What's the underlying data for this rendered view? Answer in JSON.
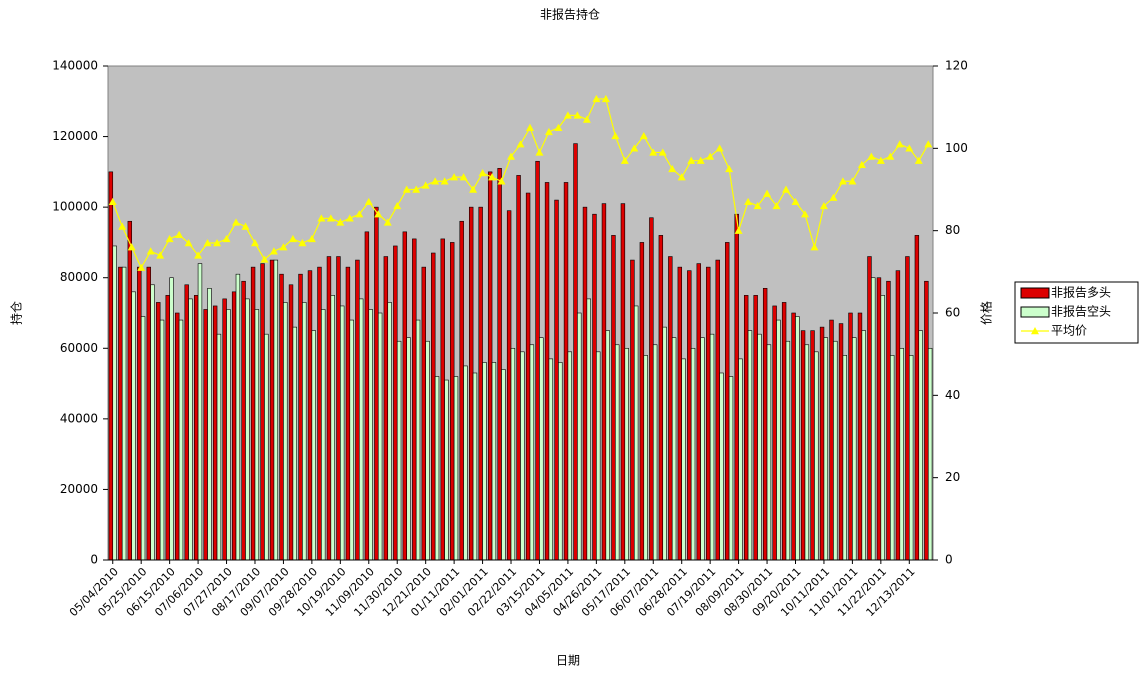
{
  "chart_data": {
    "type": "bar-line",
    "title": "非报告持仓",
    "xlabel": "日期",
    "ylabel": "持仓",
    "y2label": "价格",
    "categories": [
      "05/04/2010",
      null,
      null,
      "05/25/2010",
      null,
      null,
      "06/15/2010",
      null,
      null,
      "07/06/2010",
      null,
      null,
      "07/27/2010",
      null,
      null,
      "08/17/2010",
      null,
      null,
      "09/07/2010",
      null,
      null,
      "09/28/2010",
      null,
      null,
      "10/19/2010",
      null,
      null,
      "11/09/2010",
      null,
      null,
      "11/30/2010",
      null,
      null,
      "12/21/2010",
      null,
      null,
      "01/11/2011",
      null,
      null,
      "02/01/2011",
      null,
      null,
      "02/22/2011",
      null,
      null,
      "03/15/2011",
      null,
      null,
      "04/05/2011",
      null,
      null,
      "04/26/2011",
      null,
      null,
      "05/17/2011",
      null,
      null,
      "06/07/2011",
      null,
      null,
      "06/28/2011",
      null,
      null,
      "07/19/2011",
      null,
      null,
      "08/09/2011",
      null,
      null,
      "08/30/2011",
      null,
      null,
      "09/20/2011",
      null,
      null,
      "10/11/2011",
      null,
      null,
      "11/01/2011",
      null,
      null,
      "11/22/2011",
      null,
      null,
      "12/13/2011",
      null,
      null
    ],
    "series": [
      {
        "name": "非报告多头",
        "color": "#dd0000",
        "values": [
          110000,
          83000,
          96000,
          83000,
          83000,
          73000,
          75000,
          70000,
          78000,
          75000,
          71000,
          72000,
          74000,
          76000,
          79000,
          83000,
          84000,
          85000,
          81000,
          78000,
          81000,
          82000,
          83000,
          86000,
          86000,
          83000,
          85000,
          93000,
          100000,
          86000,
          89000,
          93000,
          91000,
          83000,
          87000,
          91000,
          90000,
          96000,
          100000,
          100000,
          110000,
          111000,
          99000,
          109000,
          104000,
          113000,
          107000,
          102000,
          107000,
          118000,
          100000,
          98000,
          101000,
          92000,
          101000,
          85000,
          90000,
          97000,
          92000,
          86000,
          83000,
          82000,
          84000,
          83000,
          85000,
          90000,
          98000,
          75000,
          75000,
          77000,
          72000,
          73000,
          70000,
          65000,
          65000,
          66000,
          68000,
          67000,
          70000,
          70000,
          86000,
          80000,
          79000,
          82000,
          86000,
          92000,
          79000
        ]
      },
      {
        "name": "非报告空头",
        "color": "#ccffcc",
        "values": [
          89000,
          83000,
          76000,
          69000,
          78000,
          68000,
          80000,
          68000,
          74000,
          84000,
          77000,
          64000,
          71000,
          81000,
          74000,
          71000,
          64000,
          85000,
          73000,
          66000,
          73000,
          65000,
          71000,
          75000,
          72000,
          68000,
          74000,
          71000,
          70000,
          73000,
          62000,
          63000,
          68000,
          62000,
          52000,
          51000,
          52000,
          55000,
          53000,
          56000,
          56000,
          54000,
          60000,
          59000,
          61000,
          63000,
          57000,
          56000,
          59000,
          70000,
          74000,
          59000,
          65000,
          61000,
          60000,
          72000,
          58000,
          61000,
          66000,
          63000,
          57000,
          60000,
          63000,
          64000,
          53000,
          52000,
          57000,
          65000,
          64000,
          61000,
          68000,
          62000,
          69000,
          61000,
          59000,
          63000,
          62000,
          58000,
          63000,
          65000,
          80000,
          75000,
          58000,
          60000,
          58000,
          65000,
          60000
        ]
      },
      {
        "name": "平均价",
        "color": "#ffff00",
        "axis": "y2",
        "values": [
          87,
          81,
          76,
          71,
          75,
          74,
          78,
          79,
          77,
          74,
          77,
          77,
          78,
          82,
          81,
          77,
          73,
          75,
          76,
          78,
          77,
          78,
          83,
          83,
          82,
          83,
          84,
          87,
          84,
          82,
          86,
          90,
          90,
          91,
          92,
          92,
          93,
          93,
          90,
          94,
          93,
          92,
          98,
          101,
          105,
          99,
          104,
          105,
          108,
          108,
          107,
          112,
          112,
          103,
          97,
          100,
          103,
          99,
          99,
          95,
          93,
          97,
          97,
          98,
          100,
          95,
          80,
          87,
          86,
          89,
          86,
          90,
          87,
          84,
          76,
          86,
          88,
          92,
          92,
          96,
          98,
          97,
          98,
          101,
          100,
          97,
          101
        ]
      }
    ],
    "ylim": [
      0,
      140000
    ],
    "yticks": [
      0,
      20000,
      40000,
      60000,
      80000,
      100000,
      120000,
      140000
    ],
    "y2lim": [
      0,
      120
    ],
    "y2ticks": [
      0,
      20,
      40,
      60,
      80,
      100,
      120
    ],
    "plot_background": "#c0c0c0",
    "legend": "right",
    "grid": false
  }
}
